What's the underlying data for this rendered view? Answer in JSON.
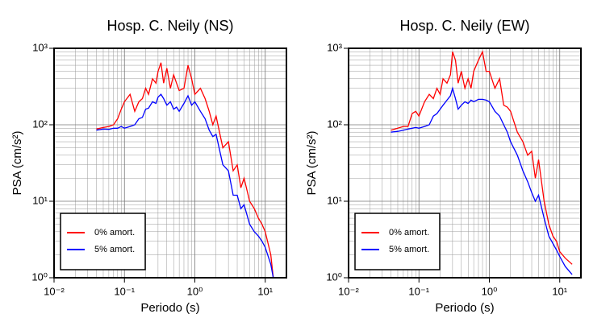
{
  "chart_data": [
    {
      "type": "line",
      "title": "Hosp. C. Neily (NS)",
      "xlabel": "Periodo (s)",
      "ylabel": "PSA (cm/s²)",
      "xscale": "log",
      "yscale": "log",
      "grid": true,
      "legend": "lower left",
      "xlim": [
        0.01,
        20
      ],
      "ylim": [
        1,
        1000
      ],
      "xticks": [
        {
          "value": 0.01,
          "label": "10⁻²"
        },
        {
          "value": 0.1,
          "label": "10⁻¹"
        },
        {
          "value": 1,
          "label": "10⁰"
        },
        {
          "value": 10,
          "label": "10¹"
        }
      ],
      "yticks": [
        {
          "value": 1,
          "label": "10⁰"
        },
        {
          "value": 10,
          "label": "10¹"
        },
        {
          "value": 100,
          "label": "10²"
        },
        {
          "value": 1000,
          "label": "10³"
        }
      ],
      "x": [
        0.04,
        0.05,
        0.06,
        0.07,
        0.08,
        0.09,
        0.1,
        0.12,
        0.14,
        0.16,
        0.18,
        0.2,
        0.22,
        0.25,
        0.28,
        0.3,
        0.33,
        0.36,
        0.4,
        0.45,
        0.5,
        0.55,
        0.6,
        0.7,
        0.8,
        0.9,
        1.0,
        1.2,
        1.4,
        1.6,
        1.8,
        2.0,
        2.5,
        3,
        3.5,
        4,
        4.5,
        5,
        6,
        7,
        8,
        9,
        10,
        12,
        13
      ],
      "series": [
        {
          "name": "0% amort.",
          "color": "#ff0000",
          "values": [
            88,
            92,
            95,
            100,
            120,
            160,
            200,
            250,
            150,
            200,
            220,
            300,
            250,
            400,
            350,
            500,
            650,
            350,
            550,
            300,
            450,
            350,
            280,
            300,
            600,
            400,
            250,
            300,
            220,
            150,
            100,
            130,
            50,
            60,
            25,
            30,
            15,
            20,
            10,
            8,
            6,
            5,
            4,
            2,
            1
          ]
        },
        {
          "name": "5% amort.",
          "color": "#0000ff",
          "values": [
            85,
            88,
            87,
            90,
            90,
            95,
            90,
            95,
            100,
            120,
            125,
            160,
            165,
            200,
            190,
            230,
            250,
            220,
            180,
            200,
            160,
            170,
            150,
            190,
            240,
            180,
            200,
            150,
            120,
            85,
            70,
            75,
            30,
            25,
            12,
            12,
            8,
            9,
            5,
            4,
            3.5,
            3,
            2.5,
            1.5,
            1
          ]
        }
      ]
    },
    {
      "type": "line",
      "title": "Hosp. C. Neily (EW)",
      "xlabel": "Periodo (s)",
      "ylabel": "PSA (cm/s²)",
      "xscale": "log",
      "yscale": "log",
      "grid": true,
      "legend": "lower left",
      "xlim": [
        0.01,
        20
      ],
      "ylim": [
        1,
        1000
      ],
      "xticks": [
        {
          "value": 0.01,
          "label": "10⁻²"
        },
        {
          "value": 0.1,
          "label": "10⁻¹"
        },
        {
          "value": 1,
          "label": "10⁰"
        },
        {
          "value": 10,
          "label": "10¹"
        }
      ],
      "yticks": [
        {
          "value": 1,
          "label": "10⁰"
        },
        {
          "value": 10,
          "label": "10¹"
        },
        {
          "value": 100,
          "label": "10²"
        },
        {
          "value": 1000,
          "label": "10³"
        }
      ],
      "x": [
        0.04,
        0.05,
        0.06,
        0.07,
        0.08,
        0.09,
        0.1,
        0.12,
        0.14,
        0.16,
        0.18,
        0.2,
        0.22,
        0.25,
        0.28,
        0.3,
        0.33,
        0.36,
        0.4,
        0.45,
        0.5,
        0.55,
        0.6,
        0.7,
        0.8,
        0.9,
        1.0,
        1.2,
        1.4,
        1.6,
        1.8,
        2.0,
        2.5,
        3,
        3.5,
        4,
        4.5,
        5,
        6,
        7,
        8,
        9,
        10,
        12,
        15
      ],
      "series": [
        {
          "name": "0% amort.",
          "color": "#ff0000",
          "values": [
            85,
            90,
            95,
            95,
            140,
            150,
            130,
            200,
            250,
            220,
            300,
            250,
            400,
            350,
            450,
            900,
            700,
            350,
            500,
            300,
            400,
            300,
            500,
            700,
            900,
            500,
            500,
            300,
            400,
            180,
            170,
            150,
            80,
            60,
            40,
            45,
            20,
            35,
            10,
            5,
            3.5,
            3,
            2.2,
            1.8,
            1.5
          ]
        },
        {
          "name": "5% amort.",
          "color": "#0000ff",
          "values": [
            80,
            82,
            85,
            88,
            90,
            92,
            90,
            95,
            100,
            130,
            140,
            160,
            180,
            210,
            240,
            300,
            220,
            160,
            180,
            200,
            190,
            210,
            200,
            215,
            215,
            210,
            200,
            150,
            130,
            100,
            80,
            60,
            40,
            25,
            18,
            13,
            10,
            12,
            6,
            3.5,
            2.8,
            2.3,
            1.9,
            1.4,
            1.1
          ]
        }
      ]
    }
  ]
}
